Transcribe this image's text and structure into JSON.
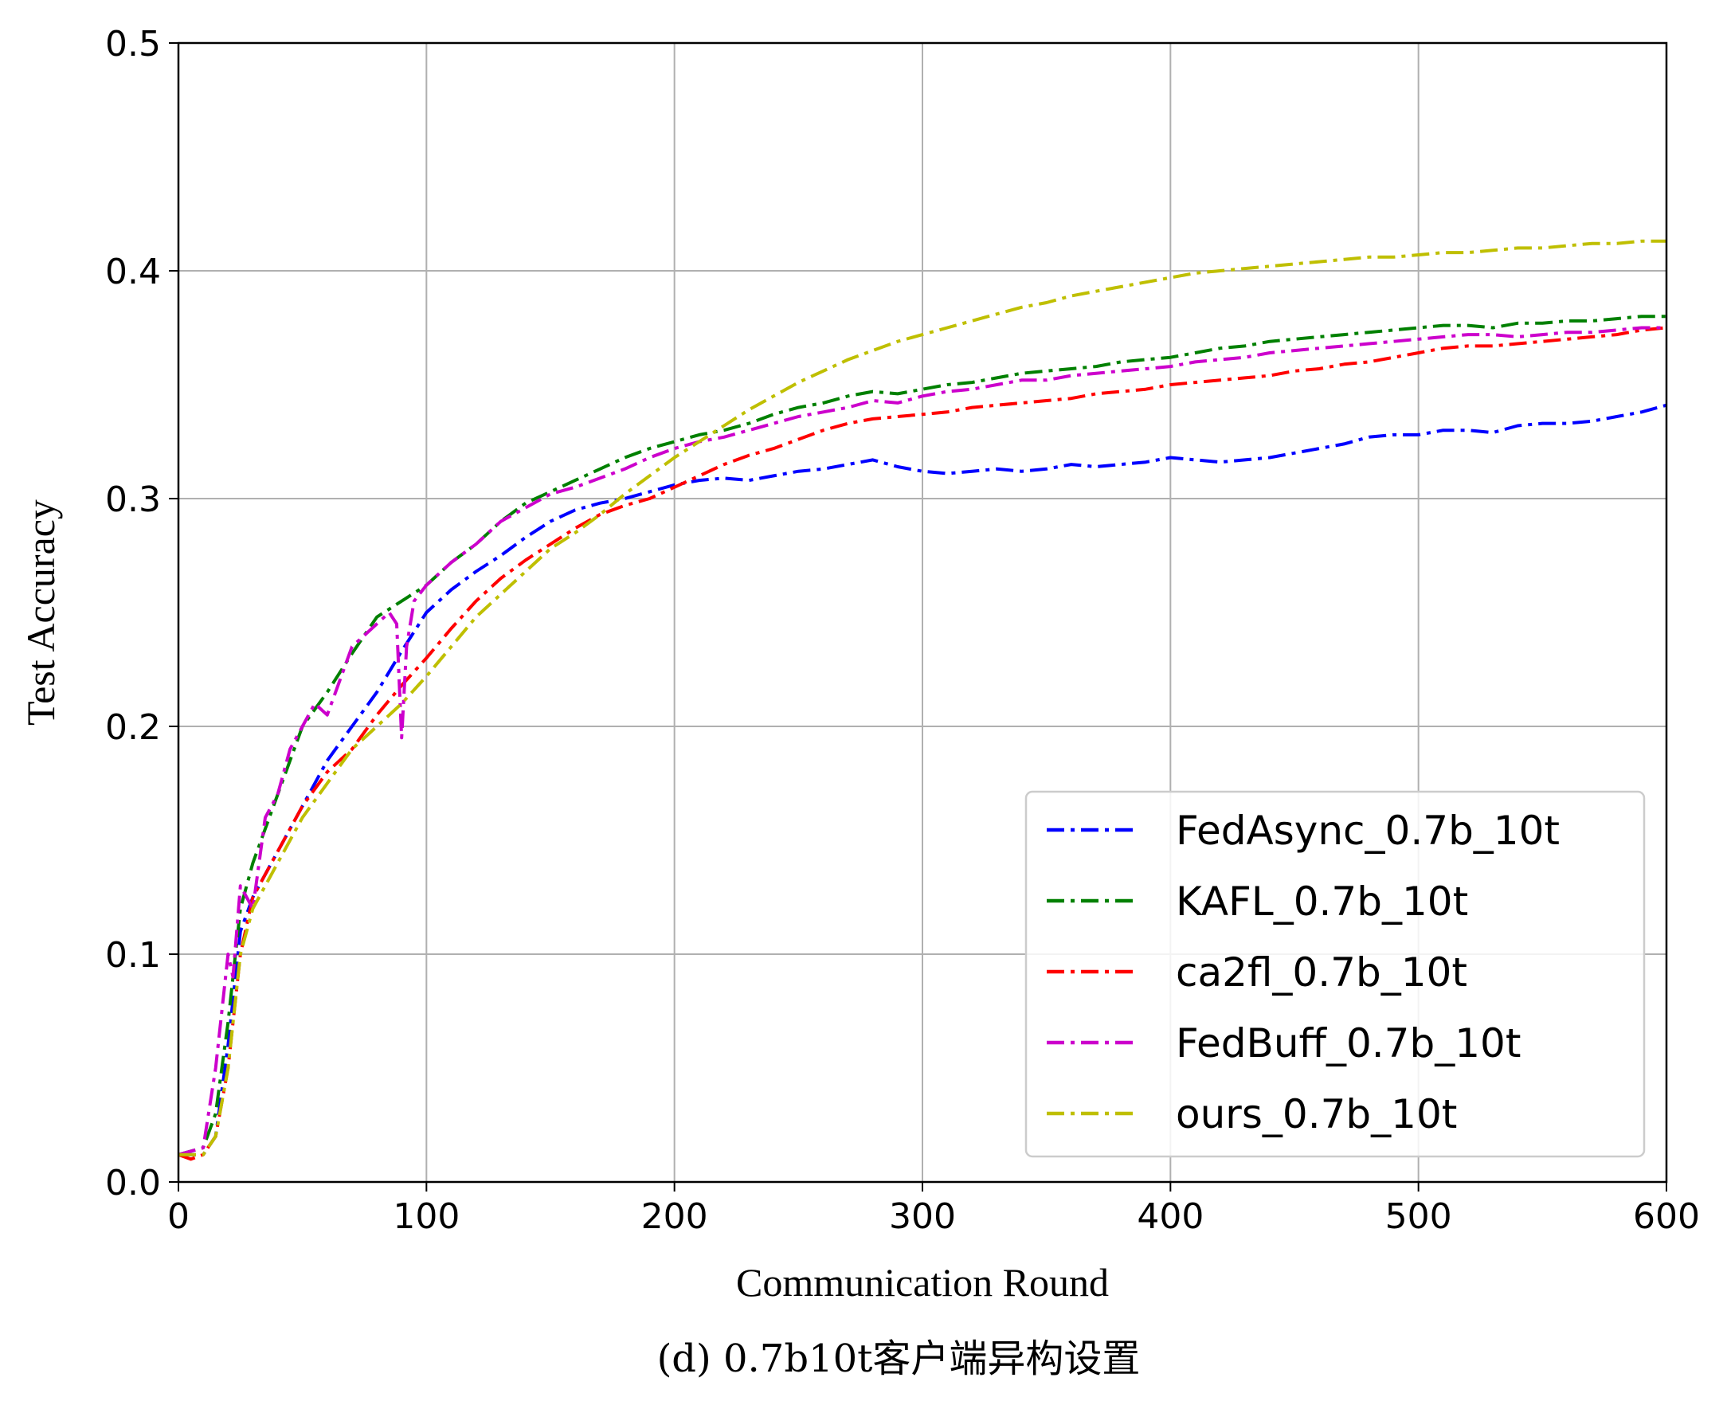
{
  "chart_data": {
    "type": "line",
    "xlabel": "Communication Round",
    "ylabel": "Test Accuracy",
    "caption": "(d) 0.7b10t客户端异构设置",
    "xlim": [
      0,
      600
    ],
    "ylim": [
      0,
      0.5
    ],
    "xticks": [
      0,
      100,
      200,
      300,
      400,
      500,
      600
    ],
    "yticks": [
      "0.0",
      "0.1",
      "0.2",
      "0.3",
      "0.4",
      "0.5"
    ],
    "grid": true,
    "legend_position": "lower-right",
    "series": [
      {
        "name": "FedAsync_0.7b_10t",
        "color": "#0000ff",
        "x": [
          0,
          10,
          15,
          20,
          25,
          30,
          40,
          50,
          60,
          70,
          80,
          90,
          100,
          110,
          120,
          130,
          140,
          150,
          160,
          170,
          180,
          190,
          200,
          210,
          220,
          230,
          240,
          250,
          260,
          270,
          280,
          290,
          300,
          310,
          320,
          330,
          340,
          350,
          360,
          370,
          380,
          390,
          400,
          410,
          420,
          430,
          440,
          450,
          460,
          470,
          480,
          490,
          500,
          510,
          520,
          530,
          540,
          550,
          560,
          570,
          580,
          590,
          600
        ],
        "y": [
          0.012,
          0.012,
          0.02,
          0.06,
          0.11,
          0.125,
          0.145,
          0.165,
          0.185,
          0.2,
          0.215,
          0.233,
          0.25,
          0.26,
          0.268,
          0.275,
          0.283,
          0.29,
          0.295,
          0.298,
          0.3,
          0.303,
          0.306,
          0.308,
          0.309,
          0.308,
          0.31,
          0.312,
          0.313,
          0.315,
          0.317,
          0.314,
          0.312,
          0.311,
          0.312,
          0.313,
          0.312,
          0.313,
          0.315,
          0.314,
          0.315,
          0.316,
          0.318,
          0.317,
          0.316,
          0.317,
          0.318,
          0.32,
          0.322,
          0.324,
          0.327,
          0.328,
          0.328,
          0.33,
          0.33,
          0.329,
          0.332,
          0.333,
          0.333,
          0.334,
          0.336,
          0.338,
          0.341
        ]
      },
      {
        "name": "KAFL_0.7b_10t",
        "color": "#008000",
        "x": [
          0,
          10,
          15,
          20,
          25,
          30,
          40,
          50,
          60,
          70,
          80,
          90,
          100,
          110,
          120,
          130,
          140,
          150,
          160,
          170,
          180,
          190,
          200,
          210,
          220,
          230,
          240,
          250,
          260,
          270,
          280,
          290,
          300,
          310,
          320,
          330,
          340,
          350,
          360,
          370,
          380,
          390,
          400,
          410,
          420,
          430,
          440,
          450,
          460,
          470,
          480,
          490,
          500,
          510,
          520,
          530,
          540,
          550,
          560,
          570,
          580,
          590,
          600
        ],
        "y": [
          0.012,
          0.015,
          0.03,
          0.07,
          0.12,
          0.14,
          0.17,
          0.2,
          0.215,
          0.232,
          0.248,
          0.255,
          0.262,
          0.272,
          0.28,
          0.29,
          0.298,
          0.303,
          0.308,
          0.313,
          0.318,
          0.322,
          0.325,
          0.328,
          0.33,
          0.333,
          0.337,
          0.34,
          0.342,
          0.345,
          0.347,
          0.346,
          0.348,
          0.35,
          0.351,
          0.353,
          0.355,
          0.356,
          0.357,
          0.358,
          0.36,
          0.361,
          0.362,
          0.364,
          0.366,
          0.367,
          0.369,
          0.37,
          0.371,
          0.372,
          0.373,
          0.374,
          0.375,
          0.376,
          0.376,
          0.375,
          0.377,
          0.377,
          0.378,
          0.378,
          0.379,
          0.38,
          0.38
        ]
      },
      {
        "name": "ca2fl_0.7b_10t",
        "color": "#ff0000",
        "x": [
          0,
          5,
          10,
          15,
          20,
          25,
          30,
          40,
          50,
          60,
          70,
          80,
          90,
          100,
          110,
          120,
          130,
          140,
          150,
          160,
          170,
          180,
          190,
          200,
          210,
          220,
          230,
          240,
          250,
          260,
          270,
          280,
          290,
          300,
          310,
          320,
          330,
          340,
          350,
          360,
          370,
          380,
          390,
          400,
          410,
          420,
          430,
          440,
          450,
          460,
          470,
          480,
          490,
          500,
          510,
          520,
          530,
          540,
          550,
          560,
          570,
          580,
          590,
          600
        ],
        "y": [
          0.012,
          0.01,
          0.012,
          0.02,
          0.05,
          0.1,
          0.125,
          0.145,
          0.165,
          0.18,
          0.19,
          0.205,
          0.218,
          0.23,
          0.243,
          0.255,
          0.265,
          0.273,
          0.28,
          0.287,
          0.293,
          0.297,
          0.3,
          0.305,
          0.31,
          0.315,
          0.319,
          0.322,
          0.326,
          0.33,
          0.333,
          0.335,
          0.336,
          0.337,
          0.338,
          0.34,
          0.341,
          0.342,
          0.343,
          0.344,
          0.346,
          0.347,
          0.348,
          0.35,
          0.351,
          0.352,
          0.353,
          0.354,
          0.356,
          0.357,
          0.359,
          0.36,
          0.362,
          0.364,
          0.366,
          0.367,
          0.367,
          0.368,
          0.369,
          0.37,
          0.371,
          0.372,
          0.374,
          0.375
        ]
      },
      {
        "name": "FedBuff_0.7b_10t",
        "color": "#cc00cc",
        "x": [
          0,
          10,
          15,
          20,
          22,
          25,
          30,
          35,
          40,
          45,
          50,
          55,
          60,
          65,
          70,
          75,
          80,
          85,
          88,
          90,
          92,
          95,
          100,
          110,
          120,
          130,
          140,
          150,
          160,
          170,
          180,
          190,
          200,
          210,
          220,
          230,
          240,
          250,
          260,
          270,
          280,
          290,
          300,
          310,
          320,
          330,
          340,
          350,
          360,
          370,
          380,
          390,
          400,
          410,
          420,
          430,
          440,
          450,
          460,
          470,
          480,
          490,
          500,
          510,
          520,
          530,
          540,
          550,
          560,
          570,
          580,
          590,
          600
        ],
        "y": [
          0.012,
          0.015,
          0.05,
          0.1,
          0.09,
          0.13,
          0.12,
          0.16,
          0.17,
          0.19,
          0.2,
          0.21,
          0.205,
          0.22,
          0.235,
          0.24,
          0.245,
          0.25,
          0.245,
          0.195,
          0.235,
          0.255,
          0.262,
          0.272,
          0.28,
          0.29,
          0.296,
          0.302,
          0.305,
          0.309,
          0.313,
          0.318,
          0.322,
          0.325,
          0.327,
          0.33,
          0.333,
          0.336,
          0.338,
          0.34,
          0.343,
          0.342,
          0.345,
          0.347,
          0.348,
          0.35,
          0.352,
          0.352,
          0.354,
          0.355,
          0.356,
          0.357,
          0.358,
          0.36,
          0.361,
          0.362,
          0.364,
          0.365,
          0.366,
          0.367,
          0.368,
          0.369,
          0.37,
          0.371,
          0.372,
          0.372,
          0.371,
          0.372,
          0.373,
          0.373,
          0.374,
          0.375,
          0.375
        ]
      },
      {
        "name": "ours_0.7b_10t",
        "color": "#bfbf00",
        "x": [
          0,
          10,
          15,
          20,
          25,
          30,
          40,
          50,
          60,
          70,
          80,
          90,
          100,
          110,
          120,
          130,
          140,
          150,
          160,
          170,
          180,
          190,
          200,
          210,
          220,
          230,
          240,
          250,
          260,
          270,
          280,
          290,
          300,
          310,
          320,
          330,
          340,
          350,
          360,
          370,
          380,
          390,
          400,
          410,
          420,
          430,
          440,
          450,
          460,
          470,
          480,
          490,
          500,
          510,
          520,
          530,
          540,
          550,
          560,
          570,
          580,
          590,
          600
        ],
        "y": [
          0.012,
          0.012,
          0.02,
          0.05,
          0.1,
          0.12,
          0.14,
          0.16,
          0.175,
          0.19,
          0.2,
          0.21,
          0.222,
          0.235,
          0.248,
          0.258,
          0.268,
          0.278,
          0.285,
          0.293,
          0.302,
          0.31,
          0.318,
          0.325,
          0.332,
          0.339,
          0.345,
          0.351,
          0.356,
          0.361,
          0.365,
          0.369,
          0.372,
          0.375,
          0.378,
          0.381,
          0.384,
          0.386,
          0.389,
          0.391,
          0.393,
          0.395,
          0.397,
          0.399,
          0.4,
          0.401,
          0.402,
          0.403,
          0.404,
          0.405,
          0.406,
          0.406,
          0.407,
          0.408,
          0.408,
          0.409,
          0.41,
          0.41,
          0.411,
          0.412,
          0.412,
          0.413,
          0.413
        ]
      }
    ]
  }
}
